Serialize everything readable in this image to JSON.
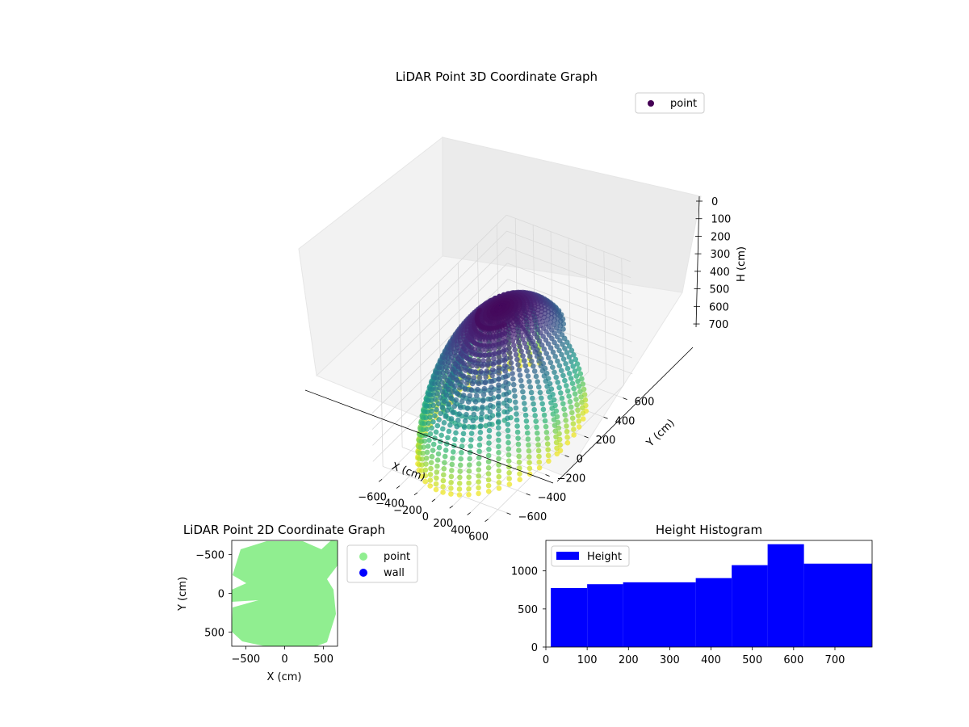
{
  "chart_data": [
    {
      "type": "scatter",
      "title": "LiDAR Point 3D Coordinate Graph",
      "xlabel": "X (cm)",
      "ylabel": "Y (cm)",
      "zlabel": "H (cm)",
      "xlim": [
        -700,
        700
      ],
      "ylim": [
        -700,
        700
      ],
      "zlim": [
        0,
        790
      ],
      "z_inverted": true,
      "xticks": [
        "−600",
        "−400",
        "−200",
        "0",
        "200",
        "400",
        "600"
      ],
      "yticks": [
        "−600",
        "−400",
        "−200",
        "0",
        "200",
        "400",
        "600"
      ],
      "zticks": [
        "0",
        "100",
        "200",
        "300",
        "400",
        "500",
        "600",
        "700"
      ],
      "colormap": "viridis",
      "grid": true,
      "legend": {
        "position": "top-right",
        "entries": [
          {
            "label": "point",
            "color": "#440154"
          }
        ]
      },
      "series": [
        {
          "name": "point",
          "description_values": {
            "structure": "dome of scan rings converging toward the top, radius ~650 cm",
            "height_range": [
              0,
              790
            ]
          }
        }
      ]
    },
    {
      "type": "scatter",
      "title": "LiDAR Point 2D Coordinate Graph",
      "xlabel": "X (cm)",
      "ylabel": "Y (cm)",
      "xlim": [
        -680,
        680
      ],
      "ylim": [
        -680,
        680
      ],
      "xticks": [
        "−500",
        "0",
        "500"
      ],
      "yticks": [
        "−500",
        "0",
        "500"
      ],
      "legend": {
        "position": "outside-right",
        "entries": [
          {
            "label": "point",
            "color": "#90ee90"
          },
          {
            "label": "wall",
            "color": "#0000ff"
          }
        ]
      },
      "series": [
        {
          "name": "point",
          "color": "#90ee90",
          "extent_radius": 650
        },
        {
          "name": "wall",
          "color": "#0000ff",
          "points": []
        }
      ]
    },
    {
      "type": "bar",
      "title": "Height Histogram",
      "xlabel": "",
      "ylabel": "",
      "xlim": [
        0,
        790
      ],
      "ylim": [
        0,
        1400
      ],
      "xticks": [
        "0",
        "100",
        "200",
        "300",
        "400",
        "500",
        "600",
        "700"
      ],
      "yticks": [
        "0",
        "500",
        "1000"
      ],
      "legend": {
        "position": "top-left",
        "entries": [
          {
            "label": "Height",
            "color": "#0000ff"
          }
        ]
      },
      "series": [
        {
          "name": "Height",
          "color": "#0000ff",
          "bins": [
            {
              "from": 12,
              "to": 100,
              "value": 775
            },
            {
              "from": 100,
              "to": 187,
              "value": 825
            },
            {
              "from": 187,
              "to": 363,
              "value": 850
            },
            {
              "from": 363,
              "to": 450,
              "value": 905
            },
            {
              "from": 450,
              "to": 537,
              "value": 1075
            },
            {
              "from": 537,
              "to": 625,
              "value": 1350
            },
            {
              "from": 625,
              "to": 790,
              "value": 1095
            }
          ]
        }
      ]
    }
  ]
}
